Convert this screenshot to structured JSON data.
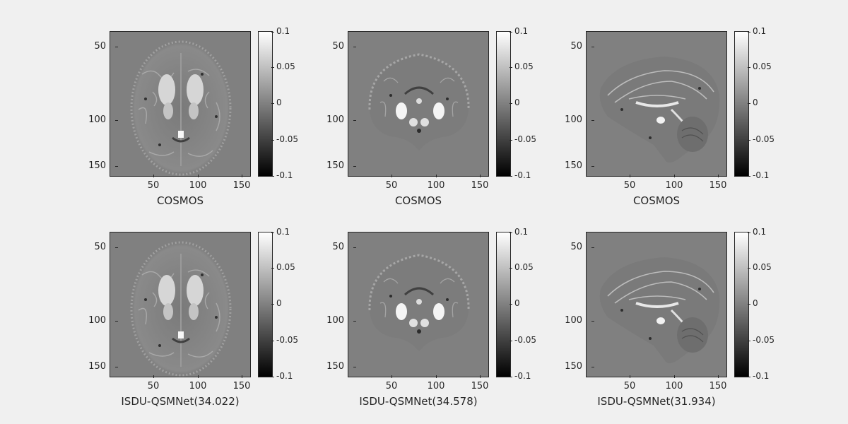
{
  "y_ticks": [
    "50",
    "100",
    "150"
  ],
  "x_ticks": [
    "50",
    "100",
    "150"
  ],
  "colorbar_ticks": [
    "0.1",
    "0.05",
    "0",
    "-0.05",
    "-0.1"
  ],
  "panels": [
    {
      "caption": "COSMOS",
      "view": "axial"
    },
    {
      "caption": "COSMOS",
      "view": "coronal"
    },
    {
      "caption": "COSMOS",
      "view": "sagittal"
    },
    {
      "caption": "ISDU-QSMNet(34.022)",
      "view": "axial"
    },
    {
      "caption": "ISDU-QSMNet(34.578)",
      "view": "coronal"
    },
    {
      "caption": "ISDU-QSMNet(31.934)",
      "view": "sagittal"
    }
  ],
  "colors": {
    "background": "#f0f0f0",
    "image_background": "#808080",
    "axis": "#262626"
  }
}
